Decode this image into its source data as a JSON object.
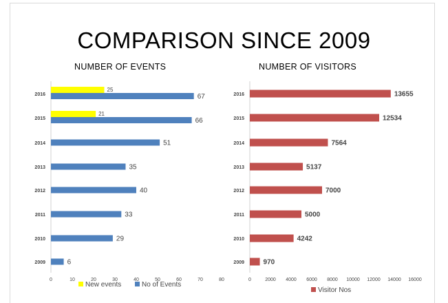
{
  "main_title": "COMPARISON SINCE 2009",
  "chart_data": [
    {
      "type": "bar",
      "orientation": "horizontal",
      "title": "NUMBER OF EVENTS",
      "categories": [
        "2016",
        "2015",
        "2014",
        "2013",
        "2012",
        "2011",
        "2010",
        "2009"
      ],
      "series": [
        {
          "name": "New events",
          "color": "#ffff00",
          "values": [
            25,
            21,
            null,
            null,
            null,
            null,
            null,
            null
          ]
        },
        {
          "name": "No of Events",
          "color": "#4f81bd",
          "values": [
            67,
            66,
            51,
            35,
            40,
            33,
            29,
            6
          ]
        }
      ],
      "xlim": [
        0,
        80
      ],
      "xticks": [
        "0",
        "10",
        "20",
        "30",
        "40",
        "50",
        "60",
        "70",
        "80"
      ],
      "grid": false,
      "legend": "bottom"
    },
    {
      "type": "bar",
      "orientation": "horizontal",
      "title": "NUMBER OF VISITORS",
      "categories": [
        "2016",
        "2015",
        "2014",
        "2013",
        "2012",
        "2011",
        "2010",
        "2009"
      ],
      "series": [
        {
          "name": "Visitor Nos",
          "color": "#c0504d",
          "values": [
            13655,
            12534,
            7564,
            5137,
            7000,
            5000,
            4242,
            970
          ]
        }
      ],
      "xlim": [
        0,
        16000
      ],
      "xticks": [
        "0",
        "2000",
        "4000",
        "6000",
        "8000",
        "10000",
        "12000",
        "14000",
        "16000"
      ],
      "grid": false,
      "legend": "bottom"
    }
  ]
}
